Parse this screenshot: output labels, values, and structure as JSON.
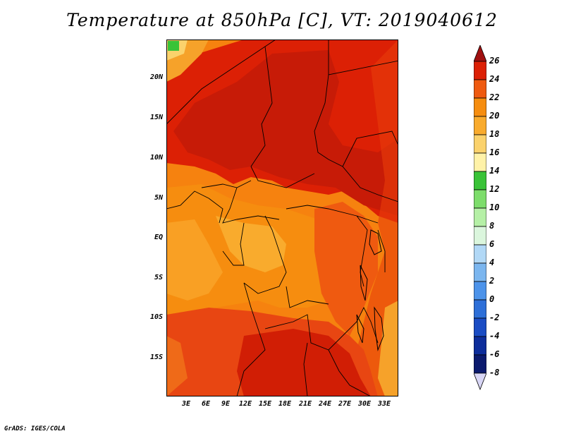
{
  "title": "Temperature at 850hPa [C], VT: 2019040612",
  "credit": "GrADS: IGES/COLA",
  "map": {
    "lat_labels": [
      "20N",
      "15N",
      "10N",
      "5N",
      "EQ",
      "5S",
      "10S",
      "15S"
    ],
    "lon_labels": [
      "3E",
      "6E",
      "9E",
      "12E",
      "15E",
      "18E",
      "21E",
      "24E",
      "27E",
      "30E",
      "33E"
    ]
  },
  "colorbar": {
    "labels": [
      "26",
      "24",
      "22",
      "20",
      "18",
      "16",
      "14",
      "12",
      "10",
      "8",
      "6",
      "4",
      "2",
      "0",
      "-2",
      "-4",
      "-6",
      "-8"
    ],
    "colors": [
      "#a01010",
      "#dc2005",
      "#ef5a10",
      "#f68d0f",
      "#f9ab2d",
      "#fbd26c",
      "#fff2a8",
      "#39c337",
      "#7ddd6b",
      "#b5f0a6",
      "#dbf6dd",
      "#b1d8f6",
      "#7bb6ef",
      "#4c93ea",
      "#2d6fd8",
      "#1a4cc4",
      "#0d2d9b",
      "#0b1a6e",
      "#d8d6f6"
    ]
  }
}
